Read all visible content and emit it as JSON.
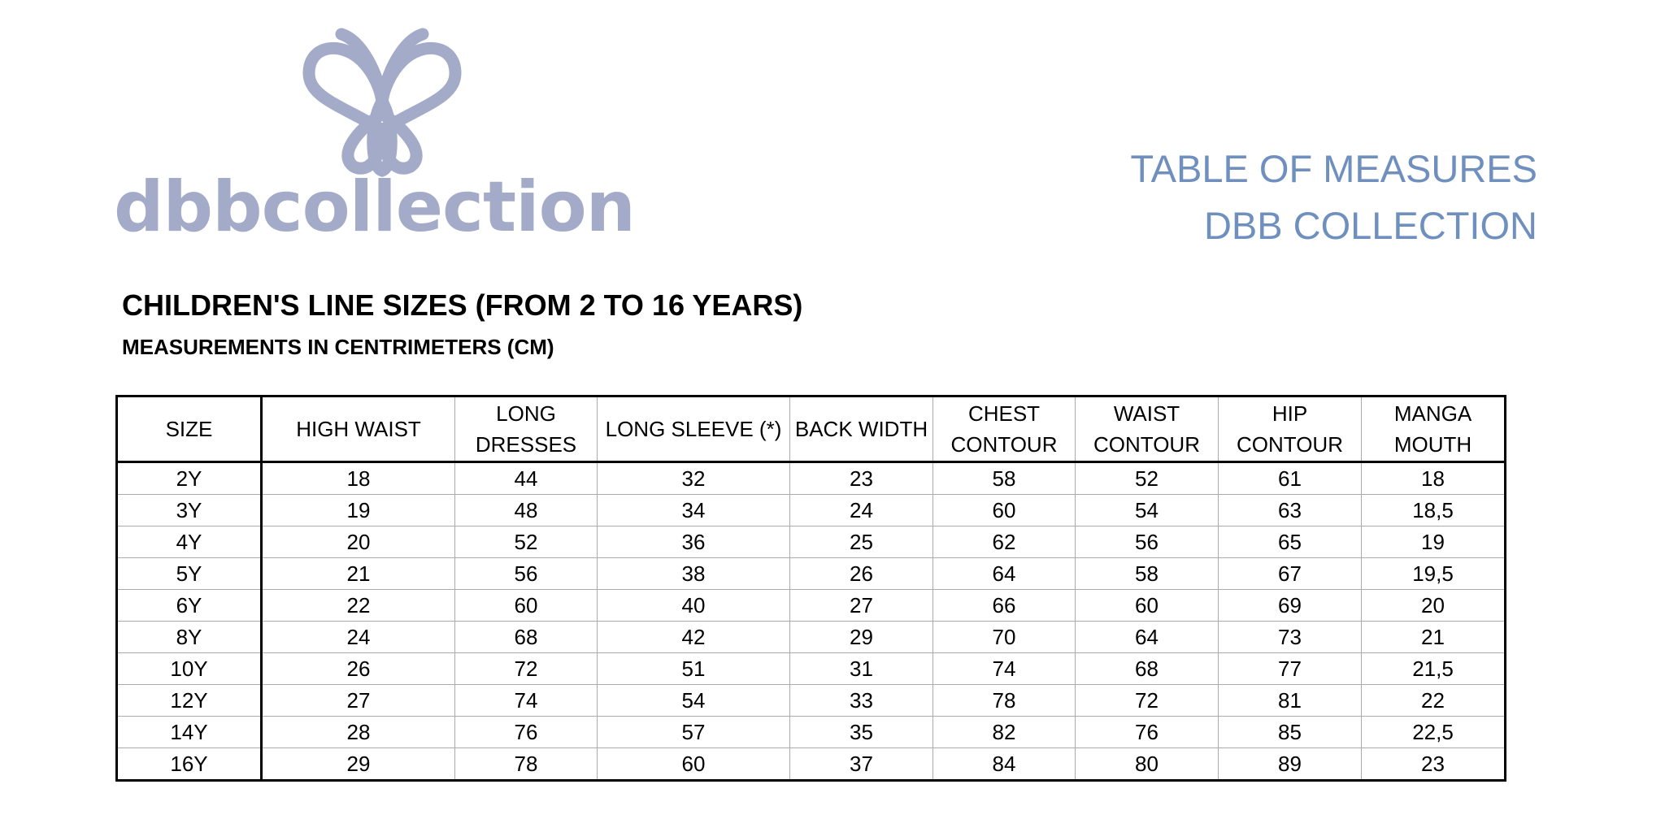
{
  "logo": {
    "text": "dbbcollection"
  },
  "header": {
    "title_line1": "TABLE OF MEASURES",
    "title_line2": "DBB COLLECTION"
  },
  "section": {
    "title": "CHILDREN'S LINE SIZES (FROM 2 TO 16 YEARS)",
    "subtitle": "MEASUREMENTS IN CENTRIMETERS (CM)"
  },
  "table": {
    "columns": [
      "SIZE",
      "HIGH WAIST",
      "LONG\nDRESSES",
      "LONG SLEEVE (*)",
      "BACK WIDTH",
      "CHEST\nCONTOUR",
      "WAIST\nCONTOUR",
      "HIP\nCONTOUR",
      "MANGA\nMOUTH"
    ],
    "rows": [
      [
        "2Y",
        "18",
        "44",
        "32",
        "23",
        "58",
        "52",
        "61",
        "18"
      ],
      [
        "3Y",
        "19",
        "48",
        "34",
        "24",
        "60",
        "54",
        "63",
        "18,5"
      ],
      [
        "4Y",
        "20",
        "52",
        "36",
        "25",
        "62",
        "56",
        "65",
        "19"
      ],
      [
        "5Y",
        "21",
        "56",
        "38",
        "26",
        "64",
        "58",
        "67",
        "19,5"
      ],
      [
        "6Y",
        "22",
        "60",
        "40",
        "27",
        "66",
        "60",
        "69",
        "20"
      ],
      [
        "8Y",
        "24",
        "68",
        "42",
        "29",
        "70",
        "64",
        "73",
        "21"
      ],
      [
        "10Y",
        "26",
        "72",
        "51",
        "31",
        "74",
        "68",
        "77",
        "21,5"
      ],
      [
        "12Y",
        "27",
        "74",
        "54",
        "33",
        "78",
        "72",
        "81",
        "22"
      ],
      [
        "14Y",
        "28",
        "76",
        "57",
        "35",
        "82",
        "76",
        "85",
        "22,5"
      ],
      [
        "16Y",
        "29",
        "78",
        "60",
        "37",
        "84",
        "80",
        "89",
        "23"
      ]
    ]
  }
}
